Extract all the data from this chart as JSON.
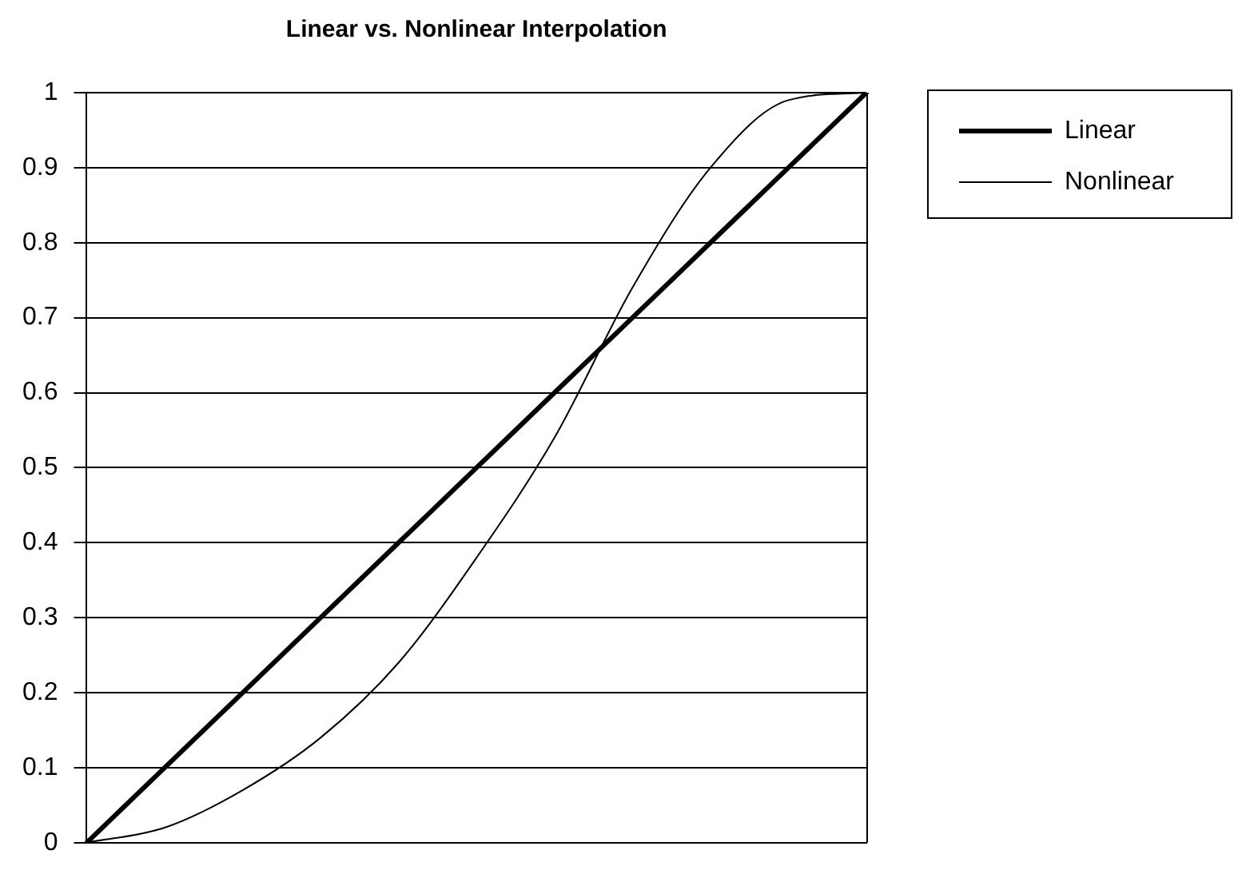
{
  "chart_data": {
    "type": "line",
    "title": "Linear vs. Nonlinear Interpolation",
    "categories": [
      null,
      null,
      null,
      null,
      null,
      null,
      null,
      null,
      null,
      null,
      null
    ],
    "series": [
      {
        "name": "Linear",
        "color": "#000000",
        "values": [
          0,
          0.1,
          0.2,
          0.3,
          0.4,
          0.5,
          0.6,
          0.7,
          0.8,
          0.9,
          1
        ]
      },
      {
        "name": "Nonlinear",
        "color": "#000000",
        "values": [
          0,
          0.02,
          0.07,
          0.14,
          0.24,
          0.38,
          0.54,
          0.74,
          0.9,
          0.99,
          1
        ]
      }
    ],
    "ylim": [
      0,
      1
    ],
    "yticks": [
      0,
      0.1,
      0.2,
      0.3,
      0.4,
      0.5,
      0.6,
      0.7,
      0.8,
      0.9,
      1
    ],
    "grid": "y",
    "legend": "top right",
    "marker": "none"
  }
}
